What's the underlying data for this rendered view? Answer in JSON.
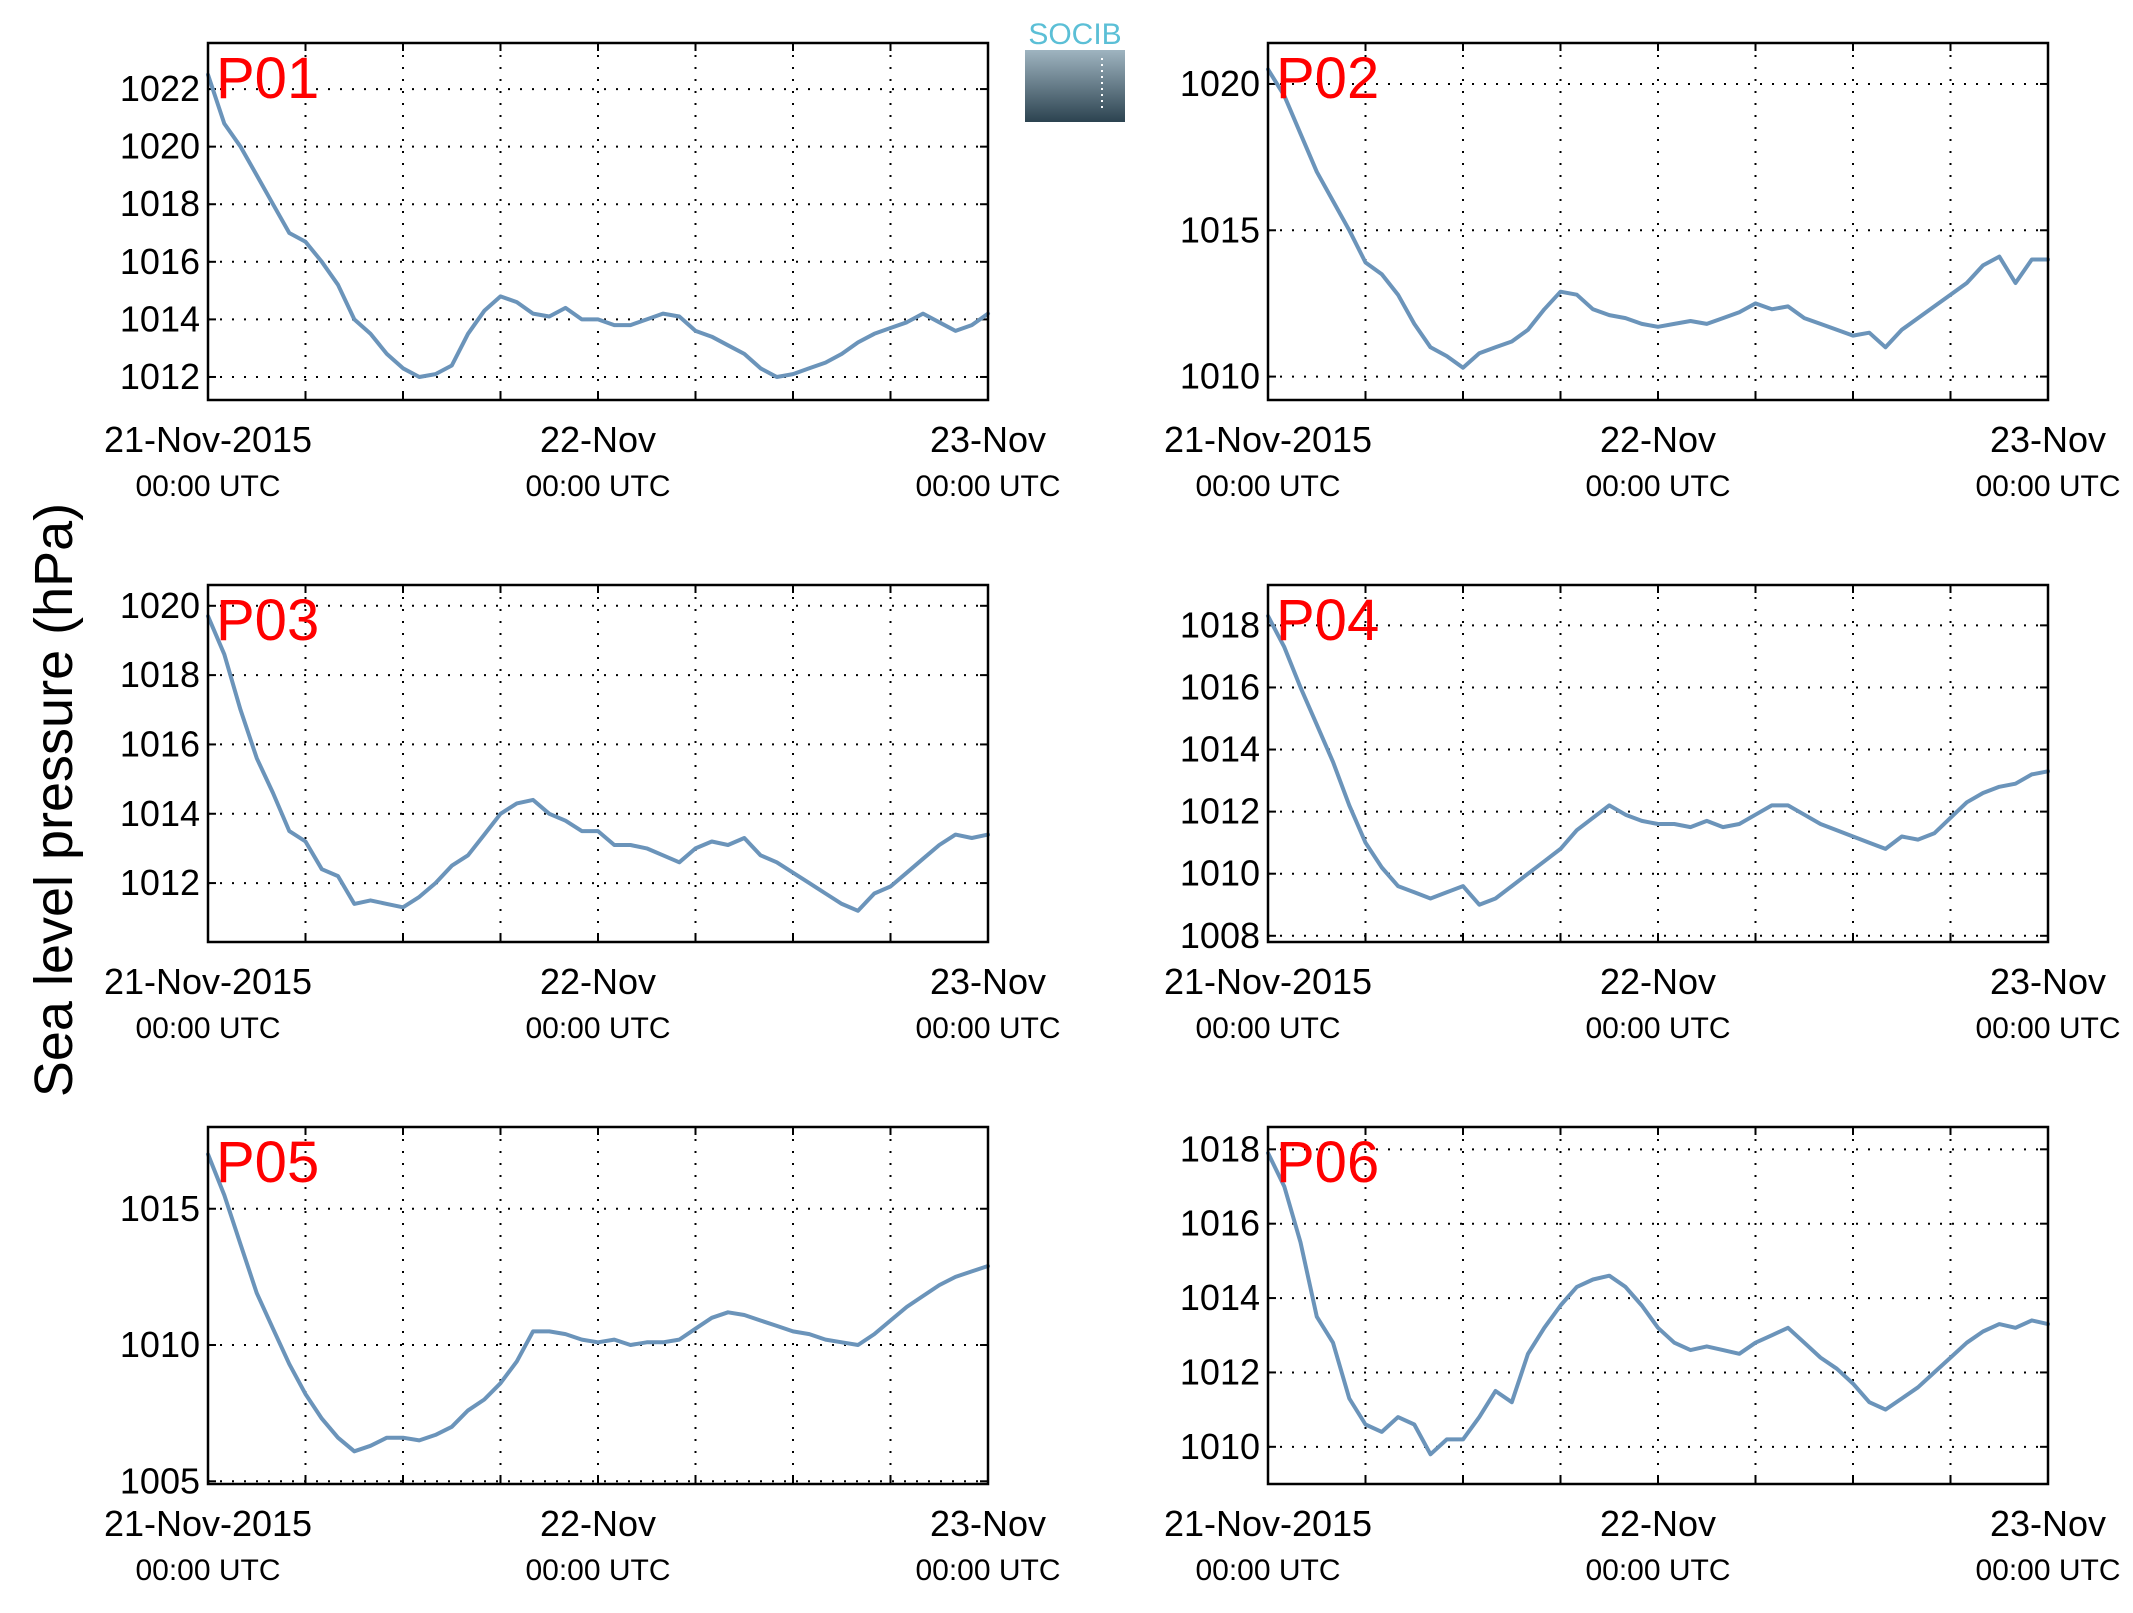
{
  "figure": {
    "ylabel": "Sea level pressure (hPa)",
    "logo_text": "SOCIB"
  },
  "colors": {
    "series": "#6b94ba",
    "panel_label": "#ff0000",
    "logo_gradient_top": "#9fb4c0",
    "logo_gradient_bottom": "#2c4350",
    "logo_text": "#5bbfd6"
  },
  "chart_data": [
    {
      "type": "line",
      "title": "P01",
      "xlim": [
        0,
        48
      ],
      "ylim": [
        1011.2,
        1023.6
      ],
      "yticks": [
        1012,
        1014,
        1016,
        1018,
        1020,
        1022
      ],
      "xgrid_hours": [
        6,
        12,
        18,
        24,
        30,
        36,
        42
      ],
      "xtick_hours": [
        0,
        24,
        48
      ],
      "xtick_dates": [
        "21-Nov-2015",
        "22-Nov",
        "23-Nov"
      ],
      "xtick_times": [
        "00:00 UTC",
        "00:00 UTC",
        "00:00 UTC"
      ],
      "grid": true,
      "series": [
        {
          "x": [
            0,
            1,
            2,
            3,
            4,
            5,
            6,
            7,
            8,
            9,
            10,
            11,
            12,
            13,
            14,
            15,
            16,
            17,
            18,
            19,
            20,
            21,
            22,
            23,
            24,
            25,
            26,
            27,
            28,
            29,
            30,
            31,
            32,
            33,
            34,
            35,
            36,
            37,
            38,
            39,
            40,
            41,
            42,
            43,
            44,
            45,
            46,
            47,
            48
          ],
          "y": [
            1022.5,
            1020.8,
            1020.0,
            1019.0,
            1018.0,
            1017.0,
            1016.7,
            1016.0,
            1015.2,
            1014.0,
            1013.5,
            1012.8,
            1012.3,
            1012.0,
            1012.1,
            1012.4,
            1013.5,
            1014.3,
            1014.8,
            1014.6,
            1014.2,
            1014.1,
            1014.4,
            1014.0,
            1014.0,
            1013.8,
            1013.8,
            1014.0,
            1014.2,
            1014.1,
            1013.6,
            1013.4,
            1013.1,
            1012.8,
            1012.3,
            1012.0,
            1012.1,
            1012.3,
            1012.5,
            1012.8,
            1013.2,
            1013.5,
            1013.7,
            1013.9,
            1014.2,
            1013.9,
            1013.6,
            1013.8,
            1014.2
          ]
        }
      ]
    },
    {
      "type": "line",
      "title": "P02",
      "xlim": [
        0,
        48
      ],
      "ylim": [
        1009.2,
        1021.4
      ],
      "yticks": [
        1010,
        1015,
        1020
      ],
      "xgrid_hours": [
        6,
        12,
        18,
        24,
        30,
        36,
        42
      ],
      "xtick_hours": [
        0,
        24,
        48
      ],
      "xtick_dates": [
        "21-Nov-2015",
        "22-Nov",
        "23-Nov"
      ],
      "xtick_times": [
        "00:00 UTC",
        "00:00 UTC",
        "00:00 UTC"
      ],
      "grid": true,
      "series": [
        {
          "x": [
            0,
            1,
            2,
            3,
            4,
            5,
            6,
            7,
            8,
            9,
            10,
            11,
            12,
            13,
            14,
            15,
            16,
            17,
            18,
            19,
            20,
            21,
            22,
            23,
            24,
            25,
            26,
            27,
            28,
            29,
            30,
            31,
            32,
            33,
            34,
            35,
            36,
            37,
            38,
            39,
            40,
            41,
            42,
            43,
            44,
            45,
            46,
            47,
            48
          ],
          "y": [
            1020.5,
            1019.6,
            1018.3,
            1017.0,
            1016.0,
            1015.0,
            1013.9,
            1013.5,
            1012.8,
            1011.8,
            1011.0,
            1010.7,
            1010.3,
            1010.8,
            1011.0,
            1011.2,
            1011.6,
            1012.3,
            1012.9,
            1012.8,
            1012.3,
            1012.1,
            1012.0,
            1011.8,
            1011.7,
            1011.8,
            1011.9,
            1011.8,
            1012.0,
            1012.2,
            1012.5,
            1012.3,
            1012.4,
            1012.0,
            1011.8,
            1011.6,
            1011.4,
            1011.5,
            1011.0,
            1011.6,
            1012.0,
            1012.4,
            1012.8,
            1013.2,
            1013.8,
            1014.1,
            1013.2,
            1014.0,
            1014.0
          ]
        }
      ]
    },
    {
      "type": "line",
      "title": "P03",
      "xlim": [
        0,
        48
      ],
      "ylim": [
        1010.3,
        1020.6
      ],
      "yticks": [
        1012,
        1014,
        1016,
        1018,
        1020
      ],
      "xgrid_hours": [
        6,
        12,
        18,
        24,
        30,
        36,
        42
      ],
      "xtick_hours": [
        0,
        24,
        48
      ],
      "xtick_dates": [
        "21-Nov-2015",
        "22-Nov",
        "23-Nov"
      ],
      "xtick_times": [
        "00:00 UTC",
        "00:00 UTC",
        "00:00 UTC"
      ],
      "grid": true,
      "series": [
        {
          "x": [
            0,
            1,
            2,
            3,
            4,
            5,
            6,
            7,
            8,
            9,
            10,
            11,
            12,
            13,
            14,
            15,
            16,
            17,
            18,
            19,
            20,
            21,
            22,
            23,
            24,
            25,
            26,
            27,
            28,
            29,
            30,
            31,
            32,
            33,
            34,
            35,
            36,
            37,
            38,
            39,
            40,
            41,
            42,
            43,
            44,
            45,
            46,
            47,
            48
          ],
          "y": [
            1019.7,
            1018.6,
            1017.0,
            1015.6,
            1014.6,
            1013.5,
            1013.2,
            1012.4,
            1012.2,
            1011.4,
            1011.5,
            1011.4,
            1011.3,
            1011.6,
            1012.0,
            1012.5,
            1012.8,
            1013.4,
            1014.0,
            1014.3,
            1014.4,
            1014.0,
            1013.8,
            1013.5,
            1013.5,
            1013.1,
            1013.1,
            1013.0,
            1012.8,
            1012.6,
            1013.0,
            1013.2,
            1013.1,
            1013.3,
            1012.8,
            1012.6,
            1012.3,
            1012.0,
            1011.7,
            1011.4,
            1011.2,
            1011.7,
            1011.9,
            1012.3,
            1012.7,
            1013.1,
            1013.4,
            1013.3,
            1013.4
          ]
        }
      ]
    },
    {
      "type": "line",
      "title": "P04",
      "xlim": [
        0,
        48
      ],
      "ylim": [
        1007.8,
        1019.3
      ],
      "yticks": [
        1008,
        1010,
        1012,
        1014,
        1016,
        1018
      ],
      "xgrid_hours": [
        6,
        12,
        18,
        24,
        30,
        36,
        42
      ],
      "xtick_hours": [
        0,
        24,
        48
      ],
      "xtick_dates": [
        "21-Nov-2015",
        "22-Nov",
        "23-Nov"
      ],
      "xtick_times": [
        "00:00 UTC",
        "00:00 UTC",
        "00:00 UTC"
      ],
      "grid": true,
      "series": [
        {
          "x": [
            0,
            1,
            2,
            3,
            4,
            5,
            6,
            7,
            8,
            9,
            10,
            11,
            12,
            13,
            14,
            15,
            16,
            17,
            18,
            19,
            20,
            21,
            22,
            23,
            24,
            25,
            26,
            27,
            28,
            29,
            30,
            31,
            32,
            33,
            34,
            35,
            36,
            37,
            38,
            39,
            40,
            41,
            42,
            43,
            44,
            45,
            46,
            47,
            48
          ],
          "y": [
            1018.3,
            1017.3,
            1016.0,
            1014.8,
            1013.6,
            1012.2,
            1011.0,
            1010.2,
            1009.6,
            1009.4,
            1009.2,
            1009.4,
            1009.6,
            1009.0,
            1009.2,
            1009.6,
            1010.0,
            1010.4,
            1010.8,
            1011.4,
            1011.8,
            1012.2,
            1011.9,
            1011.7,
            1011.6,
            1011.6,
            1011.5,
            1011.7,
            1011.5,
            1011.6,
            1011.9,
            1012.2,
            1012.2,
            1011.9,
            1011.6,
            1011.4,
            1011.2,
            1011.0,
            1010.8,
            1011.2,
            1011.1,
            1011.3,
            1011.8,
            1012.3,
            1012.6,
            1012.8,
            1012.9,
            1013.2,
            1013.3
          ]
        }
      ]
    },
    {
      "type": "line",
      "title": "P05",
      "xlim": [
        0,
        48
      ],
      "ylim": [
        1004.9,
        1018.0
      ],
      "yticks": [
        1005,
        1010,
        1015
      ],
      "xgrid_hours": [
        6,
        12,
        18,
        24,
        30,
        36,
        42
      ],
      "xtick_hours": [
        0,
        24,
        48
      ],
      "xtick_dates": [
        "21-Nov-2015",
        "22-Nov",
        "23-Nov"
      ],
      "xtick_times": [
        "00:00 UTC",
        "00:00 UTC",
        "00:00 UTC"
      ],
      "grid": true,
      "series": [
        {
          "x": [
            0,
            1,
            2,
            3,
            4,
            5,
            6,
            7,
            8,
            9,
            10,
            11,
            12,
            13,
            14,
            15,
            16,
            17,
            18,
            19,
            20,
            21,
            22,
            23,
            24,
            25,
            26,
            27,
            28,
            29,
            30,
            31,
            32,
            33,
            34,
            35,
            36,
            37,
            38,
            39,
            40,
            41,
            42,
            43,
            44,
            45,
            46,
            47,
            48
          ],
          "y": [
            1017.0,
            1015.5,
            1013.7,
            1011.9,
            1010.6,
            1009.3,
            1008.2,
            1007.3,
            1006.6,
            1006.1,
            1006.3,
            1006.6,
            1006.6,
            1006.5,
            1006.7,
            1007.0,
            1007.6,
            1008.0,
            1008.6,
            1009.4,
            1010.5,
            1010.5,
            1010.4,
            1010.2,
            1010.1,
            1010.2,
            1010.0,
            1010.1,
            1010.1,
            1010.2,
            1010.6,
            1011.0,
            1011.2,
            1011.1,
            1010.9,
            1010.7,
            1010.5,
            1010.4,
            1010.2,
            1010.1,
            1010.0,
            1010.4,
            1010.9,
            1011.4,
            1011.8,
            1012.2,
            1012.5,
            1012.7,
            1012.9
          ]
        }
      ]
    },
    {
      "type": "line",
      "title": "P06",
      "xlim": [
        0,
        48
      ],
      "ylim": [
        1009.0,
        1018.6
      ],
      "yticks": [
        1010,
        1012,
        1014,
        1016,
        1018
      ],
      "xgrid_hours": [
        6,
        12,
        18,
        24,
        30,
        36,
        42
      ],
      "xtick_hours": [
        0,
        24,
        48
      ],
      "xtick_dates": [
        "21-Nov-2015",
        "22-Nov",
        "23-Nov"
      ],
      "xtick_times": [
        "00:00 UTC",
        "00:00 UTC",
        "00:00 UTC"
      ],
      "grid": true,
      "series": [
        {
          "x": [
            0,
            1,
            2,
            3,
            4,
            5,
            6,
            7,
            8,
            9,
            10,
            11,
            12,
            13,
            14,
            15,
            16,
            17,
            18,
            19,
            20,
            21,
            22,
            23,
            24,
            25,
            26,
            27,
            28,
            29,
            30,
            31,
            32,
            33,
            34,
            35,
            36,
            37,
            38,
            39,
            40,
            41,
            42,
            43,
            44,
            45,
            46,
            47,
            48
          ],
          "y": [
            1017.9,
            1017.0,
            1015.5,
            1013.5,
            1012.8,
            1011.3,
            1010.6,
            1010.4,
            1010.8,
            1010.6,
            1009.8,
            1010.2,
            1010.2,
            1010.8,
            1011.5,
            1011.2,
            1012.5,
            1013.2,
            1013.8,
            1014.3,
            1014.5,
            1014.6,
            1014.3,
            1013.8,
            1013.2,
            1012.8,
            1012.6,
            1012.7,
            1012.6,
            1012.5,
            1012.8,
            1013.0,
            1013.2,
            1012.8,
            1012.4,
            1012.1,
            1011.7,
            1011.2,
            1011.0,
            1011.3,
            1011.6,
            1012.0,
            1012.4,
            1012.8,
            1013.1,
            1013.3,
            1013.2,
            1013.4,
            1013.3
          ]
        }
      ]
    }
  ]
}
